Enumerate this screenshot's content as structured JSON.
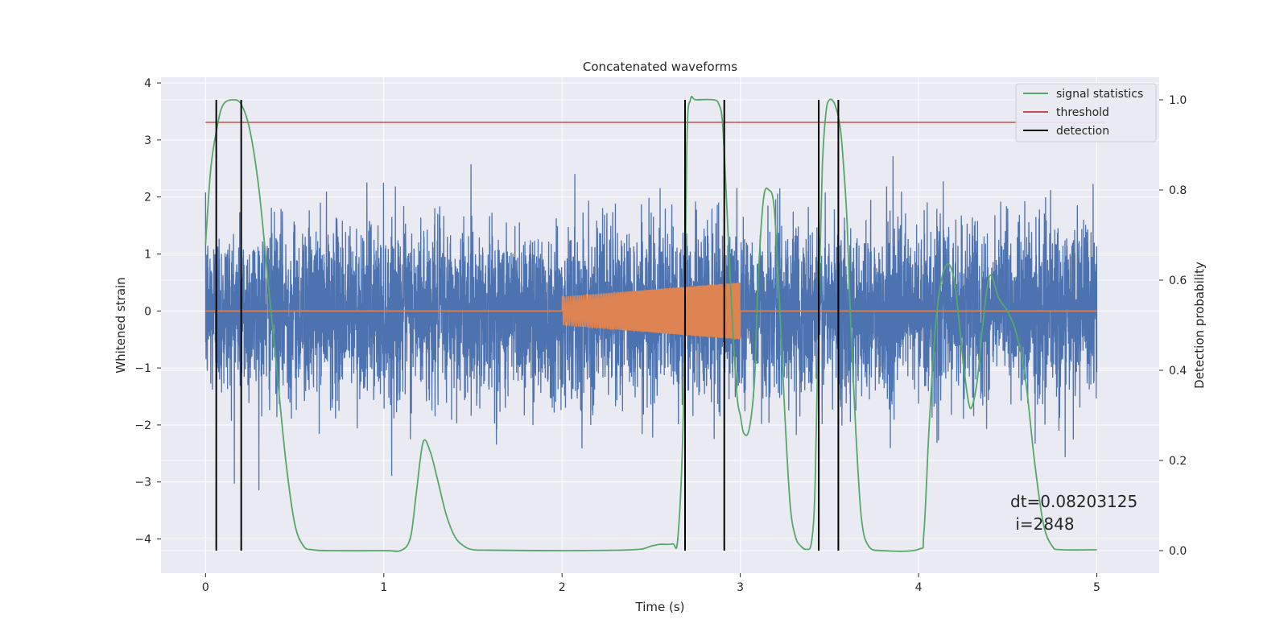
{
  "chart_data": {
    "type": "line",
    "title": "Concatenated waveforms",
    "xlabel": "Time (s)",
    "ylabel": "Whitened strain",
    "y2label": "Detection probability",
    "xlim": [
      -0.25,
      5.35
    ],
    "ylim": [
      -4.6,
      4.1
    ],
    "y2lim": [
      -0.05,
      1.05
    ],
    "xticks": [
      0,
      1,
      2,
      3,
      4,
      5
    ],
    "yticks": [
      -4,
      -3,
      -2,
      -1,
      0,
      1,
      2,
      3,
      4
    ],
    "y2ticks": [
      0.0,
      0.2,
      0.4,
      0.6,
      0.8,
      1.0
    ],
    "grid": true,
    "legend_position": "top-right",
    "series": [
      {
        "name": "",
        "kind": "noise",
        "color": "#4c72b0",
        "x_range": [
          0,
          5
        ],
        "amplitude_std": 0.75
      },
      {
        "name": "",
        "kind": "chirp",
        "color": "#dd8452",
        "x_range": [
          2.0,
          3.0
        ],
        "amp_start": 0.25,
        "amp_end": 0.5
      },
      {
        "name": "signal statistics",
        "color": "#55a868",
        "axis": "right",
        "x": [
          0.0,
          0.03,
          0.07,
          0.1,
          0.15,
          0.2,
          0.25,
          0.3,
          0.35,
          0.4,
          0.45,
          0.5,
          0.55,
          0.6,
          0.7,
          1.0,
          1.1,
          1.15,
          1.18,
          1.22,
          1.26,
          1.3,
          1.35,
          1.4,
          1.45,
          1.5,
          1.6,
          2.0,
          2.4,
          2.5,
          2.55,
          2.62,
          2.65,
          2.68,
          2.7,
          2.72,
          2.75,
          2.85,
          2.88,
          2.9,
          2.92,
          2.95,
          2.98,
          3.0,
          3.02,
          3.05,
          3.08,
          3.1,
          3.13,
          3.16,
          3.19,
          3.22,
          3.25,
          3.28,
          3.31,
          3.34,
          3.37,
          3.4,
          3.42,
          3.44,
          3.46,
          3.48,
          3.5,
          3.53,
          3.56,
          3.58,
          3.6,
          3.62,
          3.65,
          3.68,
          3.72,
          3.8,
          4.0,
          4.03,
          4.06,
          4.1,
          4.15,
          4.2,
          4.25,
          4.28,
          4.3,
          4.33,
          4.36,
          4.4,
          4.45,
          4.5,
          4.55,
          4.6,
          4.65,
          4.7,
          4.75,
          4.8,
          5.0
        ],
        "y": [
          0.68,
          0.85,
          0.95,
          0.99,
          1.0,
          0.99,
          0.93,
          0.8,
          0.6,
          0.4,
          0.2,
          0.06,
          0.01,
          0.002,
          0.0,
          0.0,
          0.001,
          0.03,
          0.12,
          0.24,
          0.22,
          0.16,
          0.08,
          0.03,
          0.01,
          0.002,
          0.001,
          0.0,
          0.002,
          0.01,
          0.014,
          0.015,
          0.03,
          0.3,
          0.9,
          1.0,
          1.0,
          1.0,
          0.99,
          0.95,
          0.8,
          0.55,
          0.35,
          0.3,
          0.26,
          0.27,
          0.38,
          0.6,
          0.78,
          0.8,
          0.76,
          0.55,
          0.3,
          0.1,
          0.03,
          0.01,
          0.003,
          0.02,
          0.15,
          0.55,
          0.85,
          0.97,
          1.0,
          0.99,
          0.94,
          0.85,
          0.72,
          0.5,
          0.25,
          0.07,
          0.01,
          0.0,
          0.003,
          0.04,
          0.28,
          0.52,
          0.63,
          0.6,
          0.42,
          0.33,
          0.32,
          0.38,
          0.5,
          0.61,
          0.56,
          0.53,
          0.48,
          0.38,
          0.2,
          0.06,
          0.01,
          0.002,
          0.002
        ]
      },
      {
        "name": "threshold",
        "color": "#c44e52",
        "axis": "right",
        "x": [
          0,
          5.05
        ],
        "y": [
          0.95,
          0.95
        ]
      },
      {
        "name": "detection",
        "color": "#000000",
        "axis": "right",
        "x": [
          0.06,
          0.2,
          2.69,
          2.91,
          3.44,
          3.55
        ],
        "y_range": [
          0,
          1
        ]
      }
    ],
    "annotation": {
      "line1": "dt=0.08203125",
      "line2": " i=2848"
    }
  }
}
